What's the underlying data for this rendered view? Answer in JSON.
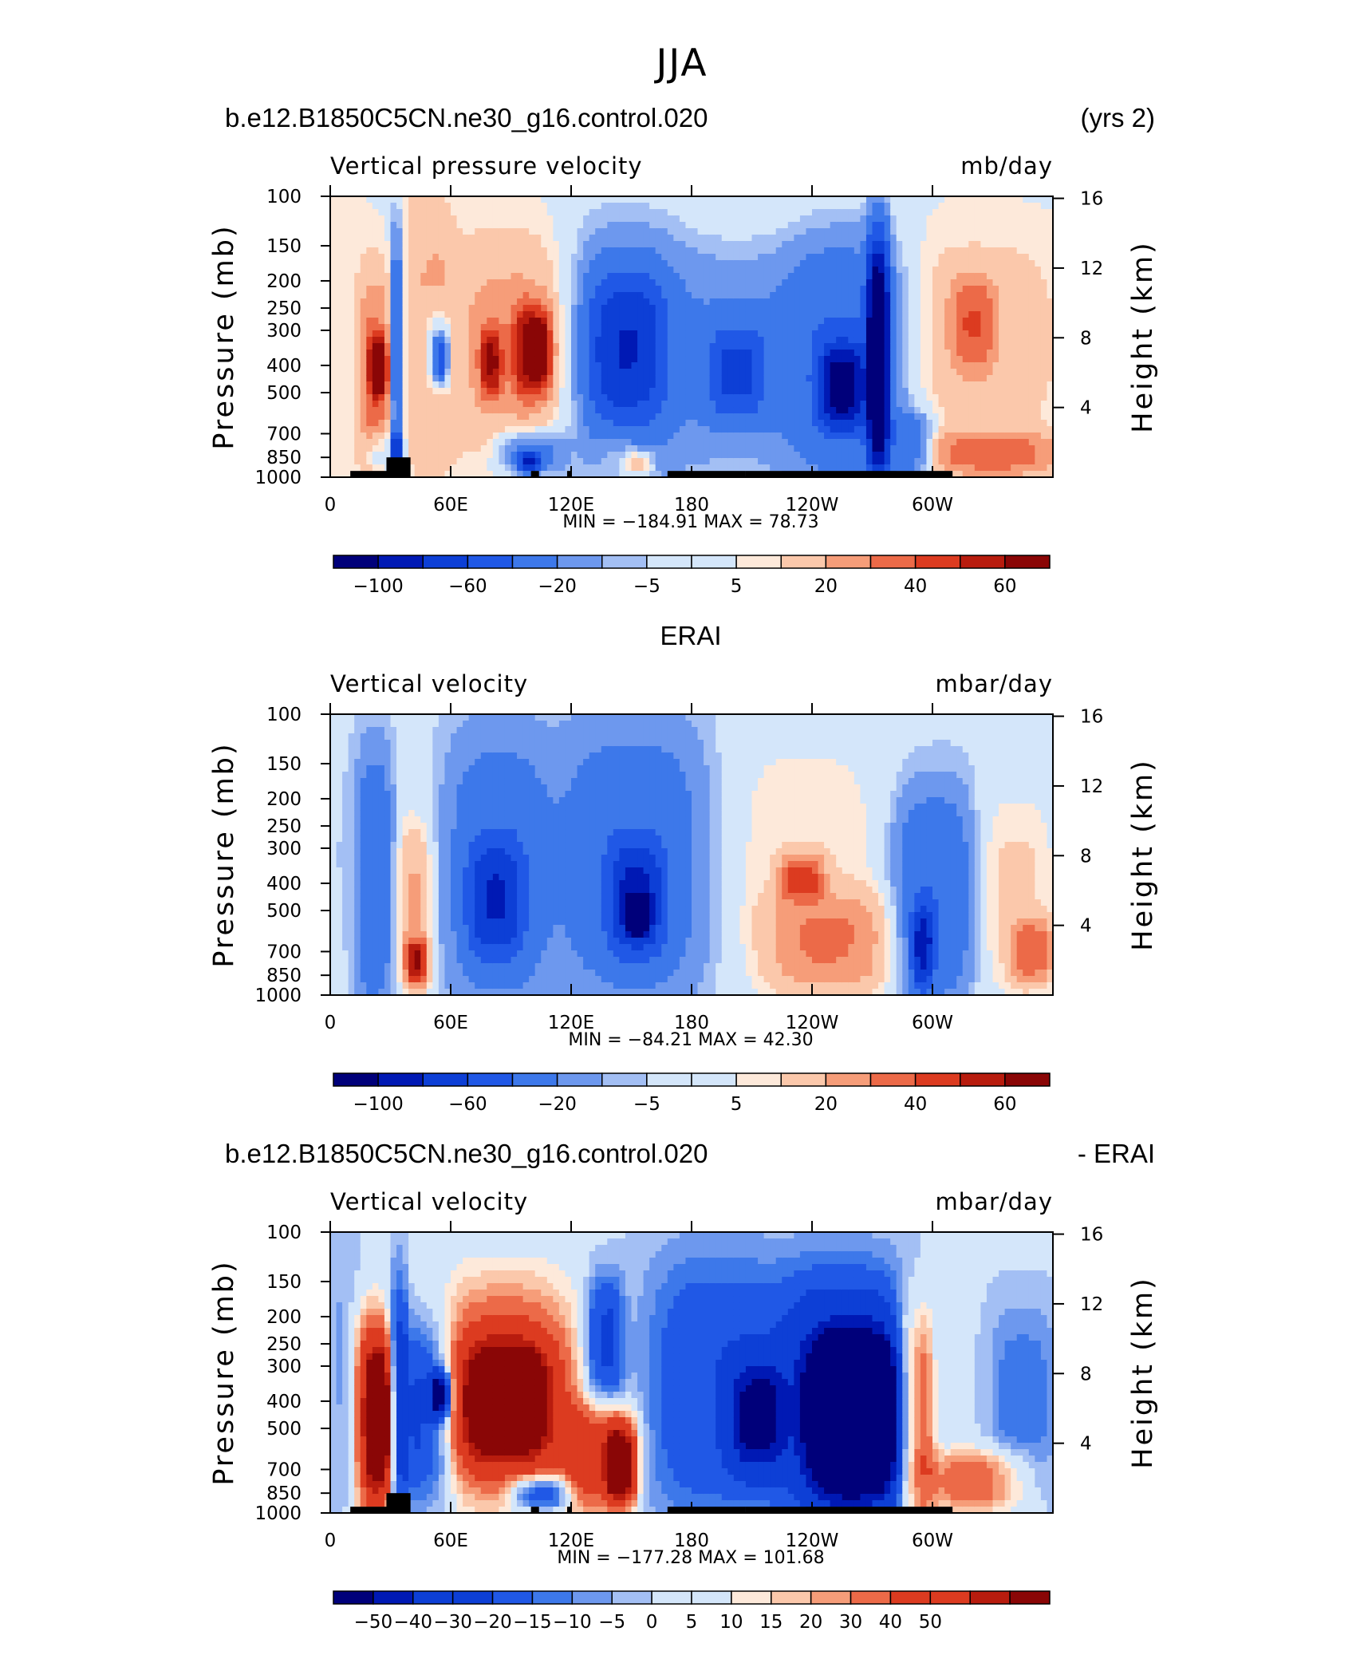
{
  "title": "JJA",
  "chart_data": [
    {
      "type": "heatmap",
      "title_left": "b.e12.B1850C5CN.ne30_g16.control.020",
      "title_right": "(yrs 2)",
      "variable": "Vertical pressure velocity",
      "units": "mb/day",
      "ylabel": "Pressure (mb)",
      "ylabel_right": "Height (km)",
      "x_ticks": [
        "0",
        "60E",
        "120E",
        "180",
        "120W",
        "60W"
      ],
      "y_ticks": [
        "100",
        "150",
        "200",
        "250",
        "300",
        "400",
        "500",
        "700",
        "850",
        "1000"
      ],
      "height_ticks": [
        "16",
        "12",
        "8",
        "4"
      ],
      "min_max": "MIN = −184.91   MAX =   78.73",
      "min": -184.91,
      "max": 78.73,
      "colorbar_labels": [
        "−100",
        "−60",
        "−20",
        "−5",
        "5",
        "20",
        "40",
        "60"
      ],
      "colorbar_levels": [
        -100,
        -80,
        -60,
        -40,
        -20,
        -10,
        -5,
        0,
        5,
        10,
        20,
        30,
        40,
        50,
        60
      ]
    },
    {
      "type": "heatmap",
      "title_center": "ERAI",
      "variable": "Vertical velocity",
      "units": "mbar/day",
      "ylabel": "Pressure (mb)",
      "ylabel_right": "Height (km)",
      "x_ticks": [
        "0",
        "60E",
        "120E",
        "180",
        "120W",
        "60W"
      ],
      "y_ticks": [
        "100",
        "150",
        "200",
        "250",
        "300",
        "400",
        "500",
        "700",
        "850",
        "1000"
      ],
      "height_ticks": [
        "16",
        "12",
        "8",
        "4"
      ],
      "min_max": "MIN = −84.21   MAX =   42.30",
      "min": -84.21,
      "max": 42.3,
      "colorbar_labels": [
        "−100",
        "−60",
        "−20",
        "−5",
        "5",
        "20",
        "40",
        "60"
      ],
      "colorbar_levels": [
        -100,
        -80,
        -60,
        -40,
        -20,
        -10,
        -5,
        0,
        5,
        10,
        20,
        30,
        40,
        50,
        60
      ]
    },
    {
      "type": "heatmap",
      "title_left": "b.e12.B1850C5CN.ne30_g16.control.020",
      "title_right": "- ERAI",
      "variable": "Vertical velocity",
      "units": "mbar/day",
      "ylabel": "Pressure (mb)",
      "ylabel_right": "Height (km)",
      "x_ticks": [
        "0",
        "60E",
        "120E",
        "180",
        "120W",
        "60W"
      ],
      "y_ticks": [
        "100",
        "150",
        "200",
        "250",
        "300",
        "400",
        "500",
        "700",
        "850",
        "1000"
      ],
      "height_ticks": [
        "16",
        "12",
        "8",
        "4"
      ],
      "min_max": "MIN = −177.28   MAX = 101.68",
      "min": -177.28,
      "max": 101.68,
      "colorbar_labels": [
        "−50",
        "−40",
        "−30",
        "−20",
        "−15",
        "−10",
        "−5",
        "0",
        "5",
        "10",
        "15",
        "20",
        "30",
        "40",
        "50"
      ],
      "colorbar_levels": [
        -60,
        -50,
        -40,
        -30,
        -20,
        -15,
        -10,
        -5,
        0,
        5,
        10,
        15,
        20,
        30,
        40,
        50,
        60
      ]
    }
  ],
  "colors": [
    "#00007a",
    "#0019b4",
    "#0d3fd6",
    "#2058e6",
    "#3d78ea",
    "#6d98ee",
    "#a3bff4",
    "#d4e6fa",
    "#fde9da",
    "#fbc8ab",
    "#f69d79",
    "#ec6a48",
    "#dc3b20",
    "#b81c0e",
    "#8a0606"
  ],
  "fields": [
    {
      "name": "model",
      "default": 4,
      "features": [
        {
          "xr": [
            0,
            18
          ],
          "pr": [
            100,
            1000
          ],
          "v": 3
        },
        {
          "xr": [
            15,
            30
          ],
          "pr": [
            200,
            950
          ],
          "v": 30
        },
        {
          "xr": [
            20,
            28
          ],
          "pr": [
            330,
            500
          ],
          "v": 55
        },
        {
          "xr": [
            18,
            32
          ],
          "pr": [
            700,
            950
          ],
          "v": -20
        },
        {
          "xr": [
            30,
            36
          ],
          "pr": [
            130,
            900
          ],
          "v": -40
        },
        {
          "xr": [
            31,
            36
          ],
          "pr": [
            700,
            950
          ],
          "v": -60
        },
        {
          "xr": [
            37,
            60
          ],
          "pr": [
            100,
            900
          ],
          "v": 15
        },
        {
          "xr": [
            48,
            60
          ],
          "pr": [
            250,
            500
          ],
          "v": -25
        },
        {
          "xr": [
            52,
            58
          ],
          "pr": [
            320,
            450
          ],
          "v": -50
        },
        {
          "xr": [
            60,
            120
          ],
          "pr": [
            150,
            750
          ],
          "v": 20
        },
        {
          "xr": [
            75,
            85
          ],
          "pr": [
            300,
            500
          ],
          "v": 40
        },
        {
          "xr": [
            92,
            110
          ],
          "pr": [
            250,
            500
          ],
          "v": 45
        },
        {
          "xr": [
            100,
            108
          ],
          "pr": [
            300,
            420
          ],
          "v": 60
        },
        {
          "xr": [
            85,
            115
          ],
          "pr": [
            700,
            960
          ],
          "v": -35
        },
        {
          "xr": [
            94,
            104
          ],
          "pr": [
            820,
            960
          ],
          "v": -60
        },
        {
          "xr": [
            118,
            175
          ],
          "pr": [
            130,
            980
          ],
          "v": -30
        },
        {
          "xr": [
            130,
            165
          ],
          "pr": [
            200,
            600
          ],
          "v": -55
        },
        {
          "xr": [
            135,
            152
          ],
          "pr": [
            700,
            980
          ],
          "v": 10
        },
        {
          "xr": [
            148,
            160
          ],
          "pr": [
            800,
            980
          ],
          "v": 25
        },
        {
          "xr": [
            175,
            230
          ],
          "pr": [
            160,
            900
          ],
          "v": -25
        },
        {
          "xr": [
            190,
            215
          ],
          "pr": [
            300,
            600
          ],
          "v": -45
        },
        {
          "xr": [
            230,
            285
          ],
          "pr": [
            150,
            980
          ],
          "v": -45
        },
        {
          "xr": [
            245,
            265
          ],
          "pr": [
            350,
            650
          ],
          "v": -75
        },
        {
          "xr": [
            268,
            278
          ],
          "pr": [
            150,
            950
          ],
          "v": -110
        },
        {
          "xr": [
            280,
            300
          ],
          "pr": [
            600,
            980
          ],
          "v": -30
        },
        {
          "xr": [
            285,
            360
          ],
          "pr": [
            150,
            700
          ],
          "v": 12
        },
        {
          "xr": [
            310,
            330
          ],
          "pr": [
            200,
            400
          ],
          "v": 25
        },
        {
          "xr": [
            300,
            360
          ],
          "pr": [
            700,
            980
          ],
          "v": 30
        }
      ],
      "land": [
        [
          10,
          32
        ],
        [
          28,
          40
        ],
        [
          100,
          104
        ],
        [
          118,
          120
        ],
        [
          168,
          207
        ],
        [
          207,
          310
        ]
      ]
    },
    {
      "name": "erai",
      "default": -3,
      "features": [
        {
          "xr": [
            0,
            12
          ],
          "pr": [
            100,
            1000
          ],
          "v": -2
        },
        {
          "xr": [
            14,
            30
          ],
          "pr": [
            150,
            980
          ],
          "v": -35
        },
        {
          "xr": [
            34,
            50
          ],
          "pr": [
            250,
            980
          ],
          "v": 25
        },
        {
          "xr": [
            38,
            48
          ],
          "pr": [
            650,
            900
          ],
          "v": 45
        },
        {
          "xr": [
            60,
            105
          ],
          "pr": [
            130,
            980
          ],
          "v": -30
        },
        {
          "xr": [
            70,
            95
          ],
          "pr": [
            300,
            700
          ],
          "v": -50
        },
        {
          "xr": [
            115,
            185
          ],
          "pr": [
            120,
            950
          ],
          "v": -30
        },
        {
          "xr": [
            140,
            165
          ],
          "pr": [
            300,
            700
          ],
          "v": -55
        },
        {
          "xr": [
            148,
            158
          ],
          "pr": [
            450,
            600
          ],
          "v": -85
        },
        {
          "xr": [
            198,
            275
          ],
          "pr": [
            120,
            980
          ],
          "v": 12
        },
        {
          "xr": [
            225,
            245
          ],
          "pr": [
            320,
            450
          ],
          "v": 35
        },
        {
          "xr": [
            220,
            280
          ],
          "pr": [
            450,
            980
          ],
          "v": 25
        },
        {
          "xr": [
            282,
            320
          ],
          "pr": [
            200,
            980
          ],
          "v": -35
        },
        {
          "xr": [
            290,
            300
          ],
          "pr": [
            500,
            950
          ],
          "v": -60
        },
        {
          "xr": [
            320,
            360
          ],
          "pr": [
            200,
            980
          ],
          "v": 15
        },
        {
          "xr": [
            340,
            360
          ],
          "pr": [
            550,
            900
          ],
          "v": 30
        }
      ],
      "land": []
    },
    {
      "name": "diff",
      "default": -4,
      "features": [
        {
          "xr": [
            0,
            15
          ],
          "pr": [
            100,
            900
          ],
          "v": -7
        },
        {
          "xr": [
            12,
            30
          ],
          "pr": [
            200,
            950
          ],
          "v": 45
        },
        {
          "xr": [
            18,
            30
          ],
          "pr": [
            280,
            800
          ],
          "v": 60
        },
        {
          "xr": [
            30,
            38
          ],
          "pr": [
            150,
            950
          ],
          "v": -30
        },
        {
          "xr": [
            36,
            60
          ],
          "pr": [
            220,
            850
          ],
          "v": -35
        },
        {
          "xr": [
            50,
            60
          ],
          "pr": [
            320,
            450
          ],
          "v": -55
        },
        {
          "xr": [
            55,
            120
          ],
          "pr": [
            150,
            900
          ],
          "v": 35
        },
        {
          "xr": [
            65,
            110
          ],
          "pr": [
            250,
            650
          ],
          "v": 60
        },
        {
          "xr": [
            92,
            118
          ],
          "pr": [
            750,
            960
          ],
          "v": -40
        },
        {
          "xr": [
            118,
            150
          ],
          "pr": [
            420,
            950
          ],
          "v": 40
        },
        {
          "xr": [
            138,
            152
          ],
          "pr": [
            500,
            900
          ],
          "v": 60
        },
        {
          "xr": [
            128,
            145
          ],
          "pr": [
            150,
            400
          ],
          "v": -30
        },
        {
          "xr": [
            160,
            225
          ],
          "pr": [
            130,
            980
          ],
          "v": -25
        },
        {
          "xr": [
            200,
            225
          ],
          "pr": [
            300,
            700
          ],
          "v": -40
        },
        {
          "xr": [
            228,
            285
          ],
          "pr": [
            150,
            980
          ],
          "v": -45
        },
        {
          "xr": [
            240,
            285
          ],
          "pr": [
            250,
            850
          ],
          "v": -65
        },
        {
          "xr": [
            283,
            300
          ],
          "pr": [
            200,
            950
          ],
          "v": 45
        },
        {
          "xr": [
            298,
            345
          ],
          "pr": [
            600,
            980
          ],
          "v": 30
        },
        {
          "xr": [
            330,
            360
          ],
          "pr": [
            200,
            800
          ],
          "v": -15
        }
      ],
      "land": [
        [
          10,
          32
        ],
        [
          28,
          40
        ],
        [
          100,
          104
        ],
        [
          118,
          120
        ],
        [
          168,
          207
        ],
        [
          207,
          310
        ]
      ]
    }
  ]
}
